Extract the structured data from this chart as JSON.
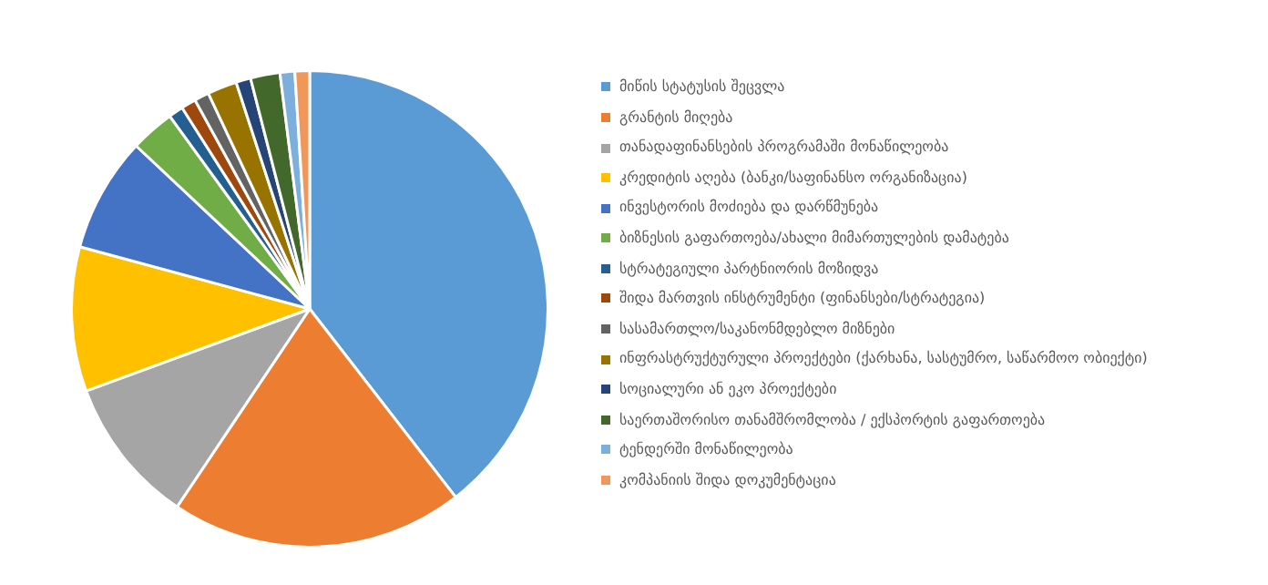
{
  "chart_data": {
    "type": "pie",
    "categories": [
      "მიწის სტატუსის შეცვლა",
      "გრანტის მიღება",
      "თანადაფინანსების პროგრამაში მონაწილეობა",
      "კრედიტის აღება (ბანკი/საფინანსო ორგანიზაცია)",
      "ინვესტორის მოძიება და დარწმუნება",
      "ბიზნესის გაფართოება/ახალი მიმართულების დამატება",
      "სტრატეგიული პარტნიორის მოზიდვა",
      "შიდა მართვის ინსტრუმენტი (ფინანსები/სტრატეგია)",
      "სასამართლო/საკანონმდებლო მიზნები",
      "ინფრასტრუქტურული პროექტები (ქარხანა, სასტუმრო, საწარმოო ობიექტი)",
      "სოციალური ან ეკო პროექტები",
      "საერთაშორისო თანამშრომლობა / ექსპორტის გაფართოება",
      "ტენდერში მონაწილეობა",
      "კომპანიის შიდა დოკუმენტაცია"
    ],
    "values": [
      39.5,
      19.9,
      10,
      9.8,
      7.8,
      3,
      1,
      1,
      1,
      2,
      1,
      2,
      1,
      1
    ],
    "colors": [
      "#5b9bd5",
      "#ed7d31",
      "#a5a5a5",
      "#ffc000",
      "#4472c4",
      "#70ad47",
      "#255e91",
      "#9e480e",
      "#636363",
      "#997300",
      "#264478",
      "#43682b",
      "#7cafdd",
      "#f1975a"
    ],
    "legend": "right"
  }
}
